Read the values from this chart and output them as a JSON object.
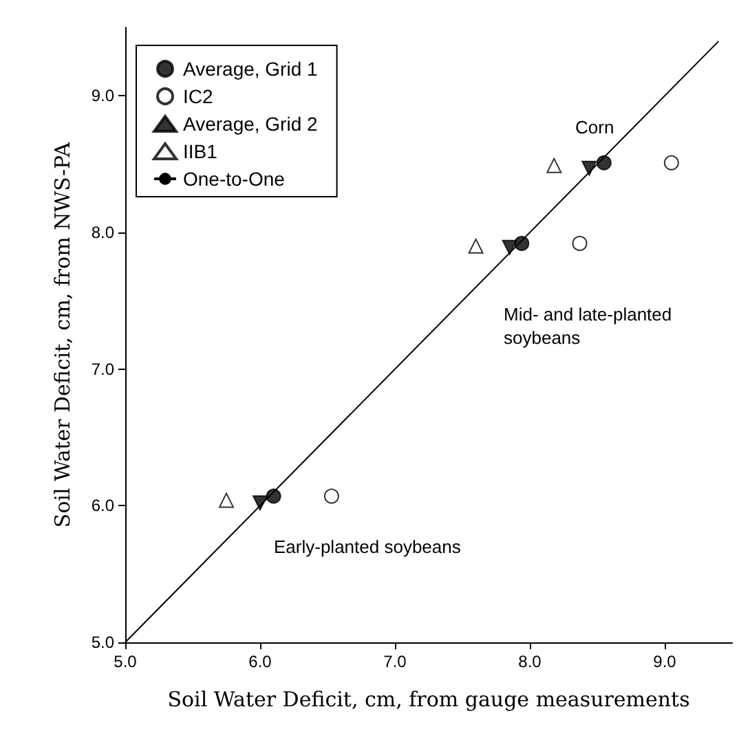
{
  "chart_data": {
    "type": "scatter",
    "xlabel": "Soil Water Deficit, cm, from gauge measurements",
    "ylabel": "Soil Water Deficit, cm, from NWS-PA",
    "xlim": [
      5,
      9.5
    ],
    "ylim": [
      5,
      9.5
    ],
    "xticks": [
      {
        "value": 5,
        "label": "5.0"
      },
      {
        "value": 6,
        "label": "6.0"
      },
      {
        "value": 7,
        "label": "7.0"
      },
      {
        "value": 8,
        "label": "8.0"
      },
      {
        "value": 9,
        "label": "9.0"
      }
    ],
    "yticks": [
      {
        "value": 5,
        "label": "5.0"
      },
      {
        "value": 6,
        "label": "6.0"
      },
      {
        "value": 7,
        "label": "7.0"
      },
      {
        "value": 8,
        "label": "8.0"
      },
      {
        "value": 9,
        "label": "9.0"
      }
    ],
    "legend": "top left",
    "grid": false,
    "series": [
      {
        "name": "Average, Grid 1",
        "color": "#000000",
        "marker": "circle",
        "x": [
          6.1,
          7.94,
          8.55
        ],
        "values": [
          6.07,
          7.92,
          8.51
        ]
      },
      {
        "name": "IC2",
        "color": "#ffffff",
        "marker": "circle",
        "x": [
          6.53,
          8.37,
          9.05
        ],
        "values": [
          6.07,
          7.92,
          8.51
        ]
      },
      {
        "name": "Average, Grid 2",
        "color": "#000000",
        "marker": "triangle-down",
        "x": [
          6.0,
          7.85,
          8.44
        ],
        "values": [
          6.02,
          7.89,
          8.47
        ]
      },
      {
        "name": "IIB1",
        "color": "#ffffff",
        "marker": "triangle",
        "x": [
          5.75,
          7.6,
          8.18
        ],
        "values": [
          6.04,
          7.9,
          8.49
        ]
      },
      {
        "name": "One-to-One",
        "type": "line",
        "color": "#000000",
        "marker": "none",
        "line_style": "solid",
        "x": [
          5,
          9.4
        ],
        "values": [
          5,
          9.4
        ]
      }
    ],
    "annotations": [
      "Corn",
      "Mid- and late-planted\nsoybeans",
      "Early-planted soybeans"
    ]
  }
}
